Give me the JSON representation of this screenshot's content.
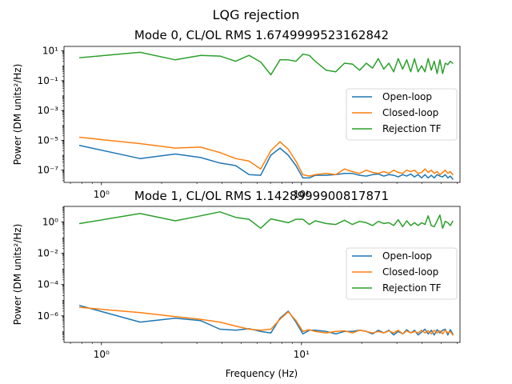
{
  "figure": {
    "suptitle": "LQG rejection"
  },
  "colors": {
    "open_loop": "#1f77b4",
    "closed_loop": "#ff7f0e",
    "rejection_tf": "#2ca02c"
  },
  "chart_data": [
    {
      "type": "line",
      "title": "Mode 0, CL/OL RMS 1.6749999523162842",
      "xlabel": "",
      "ylabel": "Power (DM units²/Hz)",
      "x_scale": "log",
      "y_scale": "log",
      "xlim": [
        0.65,
        62
      ],
      "ylim": [
        1.5e-08,
        20
      ],
      "x_tick_labels": [
        {
          "value": 1,
          "label": "10⁰"
        },
        {
          "value": 10,
          "label": "10¹"
        }
      ],
      "y_tick_labels": [
        {
          "value": 1e-07,
          "label": "10⁻⁷"
        },
        {
          "value": 1e-05,
          "label": "10⁻⁵"
        },
        {
          "value": 0.001,
          "label": "10⁻³"
        },
        {
          "value": 0.1,
          "label": "10⁻¹"
        },
        {
          "value": 10,
          "label": "10¹"
        }
      ],
      "legend": {
        "placement": "center-right",
        "entries": [
          "Open-loop",
          "Closed-loop",
          "Rejection TF"
        ]
      },
      "series": [
        {
          "name": "Open-loop",
          "x": [
            0.78,
            1.56,
            2.34,
            3.13,
            3.91,
            4.69,
            5.47,
            6.25,
            7.03,
            7.81,
            8.59,
            9.38,
            10.16,
            10.94,
            11.72,
            13.28,
            14.84,
            16.41,
            17.97,
            19.53,
            21.09,
            22.66,
            24.22,
            25.78,
            27.34,
            28.91,
            30.47,
            32.03,
            33.59,
            35.16,
            36.72,
            38.28,
            39.84,
            41.41,
            42.97,
            44.53,
            46.09,
            47.66,
            49.22,
            50.78,
            52.34,
            53.91,
            55.47,
            57.03
          ],
          "y": [
            4.5e-06,
            6e-07,
            1.2e-06,
            7e-07,
            3e-07,
            2e-07,
            5e-08,
            4.5e-08,
            1e-06,
            3e-06,
            1e-06,
            2e-07,
            3e-08,
            3e-08,
            4.5e-08,
            4.5e-08,
            5e-08,
            6e-08,
            6e-08,
            4.5e-08,
            4e-08,
            5e-08,
            5.5e-08,
            4e-08,
            5e-08,
            4.5e-08,
            3.5e-08,
            5e-08,
            4e-08,
            5.5e-08,
            3.5e-08,
            5e-08,
            3e-08,
            5e-08,
            3e-08,
            4.5e-08,
            3e-08,
            5e-08,
            4e-08,
            3.5e-08,
            5e-08,
            3e-08,
            4e-08,
            2.5e-08
          ]
        },
        {
          "name": "Closed-loop",
          "x": [
            0.78,
            1.56,
            2.34,
            3.13,
            3.91,
            4.69,
            5.47,
            6.25,
            7.03,
            7.81,
            8.59,
            9.38,
            10.16,
            10.94,
            11.72,
            13.28,
            14.84,
            16.41,
            17.97,
            19.53,
            21.09,
            22.66,
            24.22,
            25.78,
            27.34,
            28.91,
            30.47,
            32.03,
            33.59,
            35.16,
            36.72,
            38.28,
            39.84,
            41.41,
            42.97,
            44.53,
            46.09,
            47.66,
            49.22,
            50.78,
            52.34,
            53.91,
            55.47,
            57.03
          ],
          "y": [
            1.6e-05,
            6e-06,
            3e-06,
            3.5e-06,
            1.5e-06,
            6e-07,
            4e-07,
            1.2e-07,
            2e-06,
            8e-06,
            2.5e-06,
            4e-07,
            5e-08,
            4e-08,
            5e-08,
            6e-08,
            5e-08,
            1.2e-07,
            8e-08,
            6e-08,
            1e-07,
            7e-08,
            6e-08,
            8e-08,
            6e-08,
            1e-07,
            7e-08,
            6e-08,
            1e-07,
            8e-08,
            1e-07,
            6e-08,
            7e-08,
            1.2e-07,
            7e-08,
            1e-07,
            6e-08,
            8e-08,
            5e-08,
            7e-08,
            1e-07,
            6e-08,
            8e-08,
            5e-08
          ]
        },
        {
          "name": "Rejection TF",
          "x": [
            0.78,
            1.56,
            2.34,
            3.13,
            3.91,
            4.69,
            5.47,
            6.25,
            7.03,
            7.81,
            8.59,
            9.38,
            10.16,
            10.94,
            11.72,
            13.28,
            14.84,
            16.41,
            17.97,
            19.53,
            21.09,
            22.66,
            24.22,
            25.78,
            27.34,
            28.91,
            30.47,
            32.03,
            33.59,
            35.16,
            36.72,
            38.28,
            39.84,
            41.41,
            42.97,
            44.53,
            46.09,
            47.66,
            49.22,
            50.78,
            52.34,
            53.91,
            55.47,
            57.03
          ],
          "y": [
            3.5,
            8,
            2.5,
            5,
            4.5,
            2,
            5,
            1.8,
            0.25,
            2.5,
            2.5,
            2,
            6,
            5,
            2,
            0.5,
            0.4,
            1.5,
            1.3,
            0.5,
            1.5,
            0.7,
            3,
            0.6,
            1.5,
            0.4,
            3,
            0.6,
            2.5,
            0.4,
            3,
            0.4,
            1,
            0.4,
            3,
            0.5,
            2,
            0.3,
            2.5,
            0.3,
            1.5,
            1.2,
            2,
            1.5
          ]
        }
      ]
    },
    {
      "type": "line",
      "title": "Mode 1, CL/OL RMS 1.1428999900817871",
      "xlabel": "Frequency (Hz)",
      "ylabel": "Power (DM units²/Hz)",
      "x_scale": "log",
      "y_scale": "log",
      "xlim": [
        0.65,
        62
      ],
      "ylim": [
        2e-08,
        10
      ],
      "x_tick_labels": [
        {
          "value": 1,
          "label": "10⁰"
        },
        {
          "value": 10,
          "label": "10¹"
        }
      ],
      "y_tick_labels": [
        {
          "value": 1e-06,
          "label": "10⁻⁶"
        },
        {
          "value": 0.0001,
          "label": "10⁻⁴"
        },
        {
          "value": 0.01,
          "label": "10⁻²"
        },
        {
          "value": 1,
          "label": "10⁰"
        }
      ],
      "legend": {
        "placement": "center-right",
        "entries": [
          "Open-loop",
          "Closed-loop",
          "Rejection TF"
        ]
      },
      "series": [
        {
          "name": "Open-loop",
          "x": [
            0.78,
            1.56,
            2.34,
            3.13,
            3.91,
            4.69,
            5.47,
            6.25,
            7.03,
            7.81,
            8.59,
            9.38,
            10.16,
            10.94,
            11.72,
            13.28,
            14.84,
            16.41,
            17.97,
            19.53,
            21.09,
            22.66,
            24.22,
            25.78,
            27.34,
            28.91,
            30.47,
            32.03,
            33.59,
            35.16,
            36.72,
            38.28,
            39.84,
            41.41,
            42.97,
            44.53,
            46.09,
            47.66,
            49.22,
            50.78,
            52.34,
            53.91,
            55.47,
            57.03
          ],
          "y": [
            4.5e-06,
            4e-07,
            7e-07,
            5e-07,
            1.4e-07,
            1.2e-07,
            1.5e-07,
            1e-07,
            8e-08,
            7e-07,
            2e-06,
            4e-07,
            7e-08,
            1.2e-07,
            1.2e-07,
            1e-07,
            7e-08,
            1e-07,
            1e-07,
            1.2e-07,
            1e-07,
            7e-08,
            1.2e-07,
            8e-08,
            1.2e-07,
            6e-08,
            1e-07,
            7e-08,
            1.3e-07,
            8e-08,
            1.2e-07,
            6e-08,
            9e-08,
            1.4e-07,
            7e-08,
            1.2e-07,
            6e-08,
            1.3e-07,
            8e-08,
            1.2e-07,
            1.4e-07,
            6e-08,
            1.3e-07,
            7e-08
          ]
        },
        {
          "name": "Closed-loop",
          "x": [
            0.78,
            1.56,
            2.34,
            3.13,
            3.91,
            4.69,
            5.47,
            6.25,
            7.03,
            7.81,
            8.59,
            9.38,
            10.16,
            10.94,
            11.72,
            13.28,
            14.84,
            16.41,
            17.97,
            19.53,
            21.09,
            22.66,
            24.22,
            25.78,
            27.34,
            28.91,
            30.47,
            32.03,
            33.59,
            35.16,
            36.72,
            38.28,
            39.84,
            41.41,
            42.97,
            44.53,
            46.09,
            47.66,
            49.22,
            50.78,
            52.34,
            53.91,
            55.47,
            57.03
          ],
          "y": [
            3.5e-06,
            1.6e-06,
            9e-07,
            6e-07,
            4e-07,
            2.2e-07,
            1.4e-07,
            1.2e-07,
            1.4e-07,
            6e-07,
            1.8e-06,
            5e-07,
            1e-07,
            1.3e-07,
            1e-07,
            8e-08,
            1e-07,
            1.1e-07,
            8e-08,
            1.2e-07,
            1e-07,
            8e-08,
            1e-07,
            8e-08,
            1.1e-07,
            8e-08,
            1.2e-07,
            7e-08,
            1.1e-07,
            8e-08,
            1e-07,
            8e-08,
            1.2e-07,
            8e-08,
            1.1e-07,
            7e-08,
            1.2e-07,
            8e-08,
            1.1e-07,
            7e-08,
            1.2e-07,
            8e-08,
            1e-07,
            6e-08
          ]
        },
        {
          "name": "Rejection TF",
          "x": [
            0.78,
            1.56,
            2.34,
            3.13,
            3.91,
            4.69,
            5.47,
            6.25,
            7.03,
            7.81,
            8.59,
            9.38,
            10.16,
            10.94,
            11.72,
            13.28,
            14.84,
            16.41,
            17.97,
            19.53,
            21.09,
            22.66,
            24.22,
            25.78,
            27.34,
            28.91,
            30.47,
            32.03,
            33.59,
            35.16,
            36.72,
            38.28,
            39.84,
            41.41,
            42.97,
            44.53,
            46.09,
            47.66,
            49.22,
            50.78,
            52.34,
            53.91,
            55.47,
            57.03
          ],
          "y": [
            0.8,
            3.5,
            1.2,
            2.5,
            4.5,
            2,
            1.5,
            0.4,
            1.6,
            1.2,
            0.9,
            1.5,
            1.5,
            0.7,
            1.2,
            0.8,
            0.7,
            1.3,
            0.7,
            1.1,
            0.9,
            0.6,
            1.1,
            0.8,
            0.9,
            0.6,
            1.4,
            0.5,
            1.2,
            0.6,
            0.9,
            0.6,
            0.9,
            0.7,
            2.5,
            0.6,
            0.5,
            1.2,
            2.8,
            0.4,
            1.1,
            0.9,
            0.6,
            1.1
          ]
        }
      ]
    }
  ]
}
